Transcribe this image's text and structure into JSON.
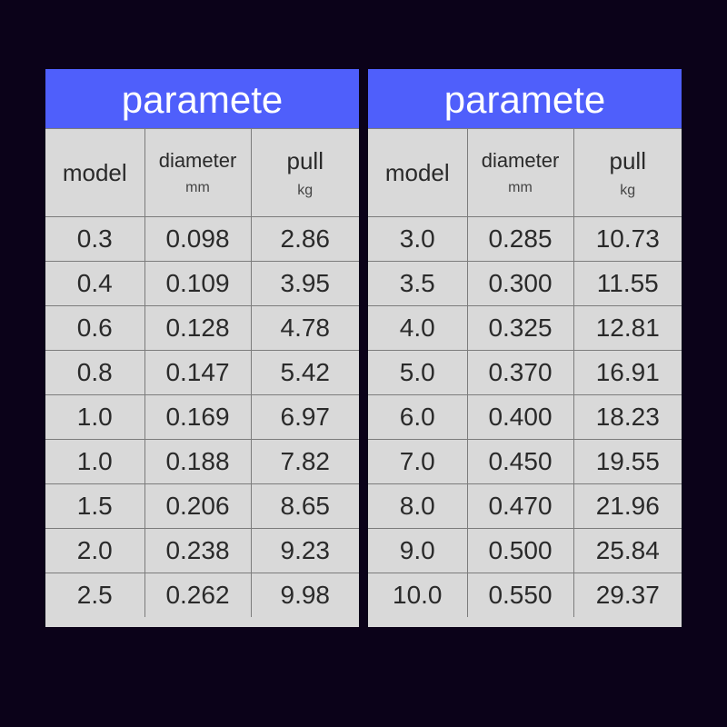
{
  "tables": [
    {
      "title": "paramete",
      "headers": {
        "model": "model",
        "diameter": "diameter",
        "diameter_unit": "mm",
        "pull": "pull",
        "pull_unit": "kg"
      },
      "rows": [
        [
          "0.3",
          "0.098",
          "2.86"
        ],
        [
          "0.4",
          "0.109",
          "3.95"
        ],
        [
          "0.6",
          "0.128",
          "4.78"
        ],
        [
          "0.8",
          "0.147",
          "5.42"
        ],
        [
          "1.0",
          "0.169",
          "6.97"
        ],
        [
          "1.0",
          "0.188",
          "7.82"
        ],
        [
          "1.5",
          "0.206",
          "8.65"
        ],
        [
          "2.0",
          "0.238",
          "9.23"
        ],
        [
          "2.5",
          "0.262",
          "9.98"
        ]
      ]
    },
    {
      "title": "paramete",
      "headers": {
        "model": "model",
        "diameter": "diameter",
        "diameter_unit": "mm",
        "pull": "pull",
        "pull_unit": "kg"
      },
      "rows": [
        [
          "3.0",
          "0.285",
          "10.73"
        ],
        [
          "3.5",
          "0.300",
          "11.55"
        ],
        [
          "4.0",
          "0.325",
          "12.81"
        ],
        [
          "5.0",
          "0.370",
          "16.91"
        ],
        [
          "6.0",
          "0.400",
          "18.23"
        ],
        [
          "7.0",
          "0.450",
          "19.55"
        ],
        [
          "8.0",
          "0.470",
          "21.96"
        ],
        [
          "9.0",
          "0.500",
          "25.84"
        ],
        [
          "10.0",
          "0.550",
          "29.37"
        ]
      ]
    }
  ],
  "colors": {
    "background": "#0b0219",
    "header": "#4f5ffb",
    "cell": "#d9d9d9"
  }
}
